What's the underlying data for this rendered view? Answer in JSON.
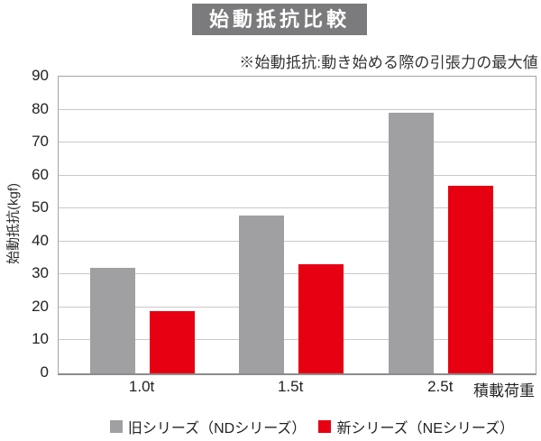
{
  "note": "※始動抵抗:動き始める際の引張力の最大値",
  "chart_data": {
    "type": "bar",
    "title": "始動抵抗比較",
    "ylabel": "始動抵抗(kgf)",
    "xlabel": "積載荷重",
    "categories": [
      "1.0t",
      "1.5t",
      "2.5t"
    ],
    "series": [
      {
        "name": "旧シリーズ（NDシリーズ）",
        "color": "#a0a0a2",
        "values": [
          32,
          48,
          79
        ]
      },
      {
        "name": "新シリーズ（NEシリーズ）",
        "color": "#e60012",
        "values": [
          19,
          33,
          57
        ]
      }
    ],
    "ylim": [
      0,
      90
    ],
    "ytick_step": 10,
    "grid": true,
    "legend_position": "bottom"
  },
  "colors": {
    "title_bg": "#7b7b7d",
    "title_text": "#ffffff",
    "old_series": "#a0a0a2",
    "new_series": "#e60012",
    "gridline": "#c9c9cb",
    "axis": "#8c8c8e",
    "text": "#2b2b2b"
  }
}
